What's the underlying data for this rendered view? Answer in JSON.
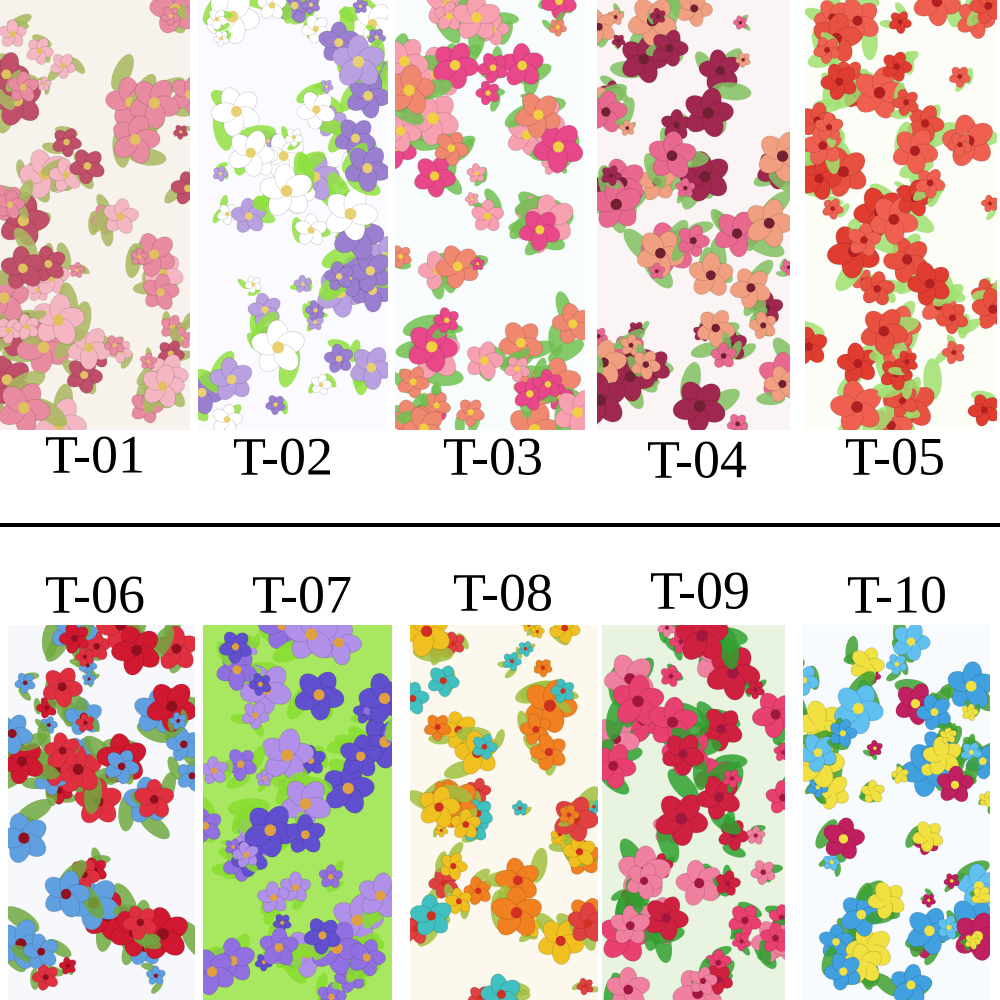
{
  "panels": [
    {
      "label": "T-01"
    },
    {
      "label": "T-02"
    },
    {
      "label": "T-03"
    },
    {
      "label": "T-04"
    },
    {
      "label": "T-05"
    },
    {
      "label": "T-06"
    },
    {
      "label": "T-07"
    },
    {
      "label": "T-08"
    },
    {
      "label": "T-09"
    },
    {
      "label": "T-10"
    }
  ]
}
